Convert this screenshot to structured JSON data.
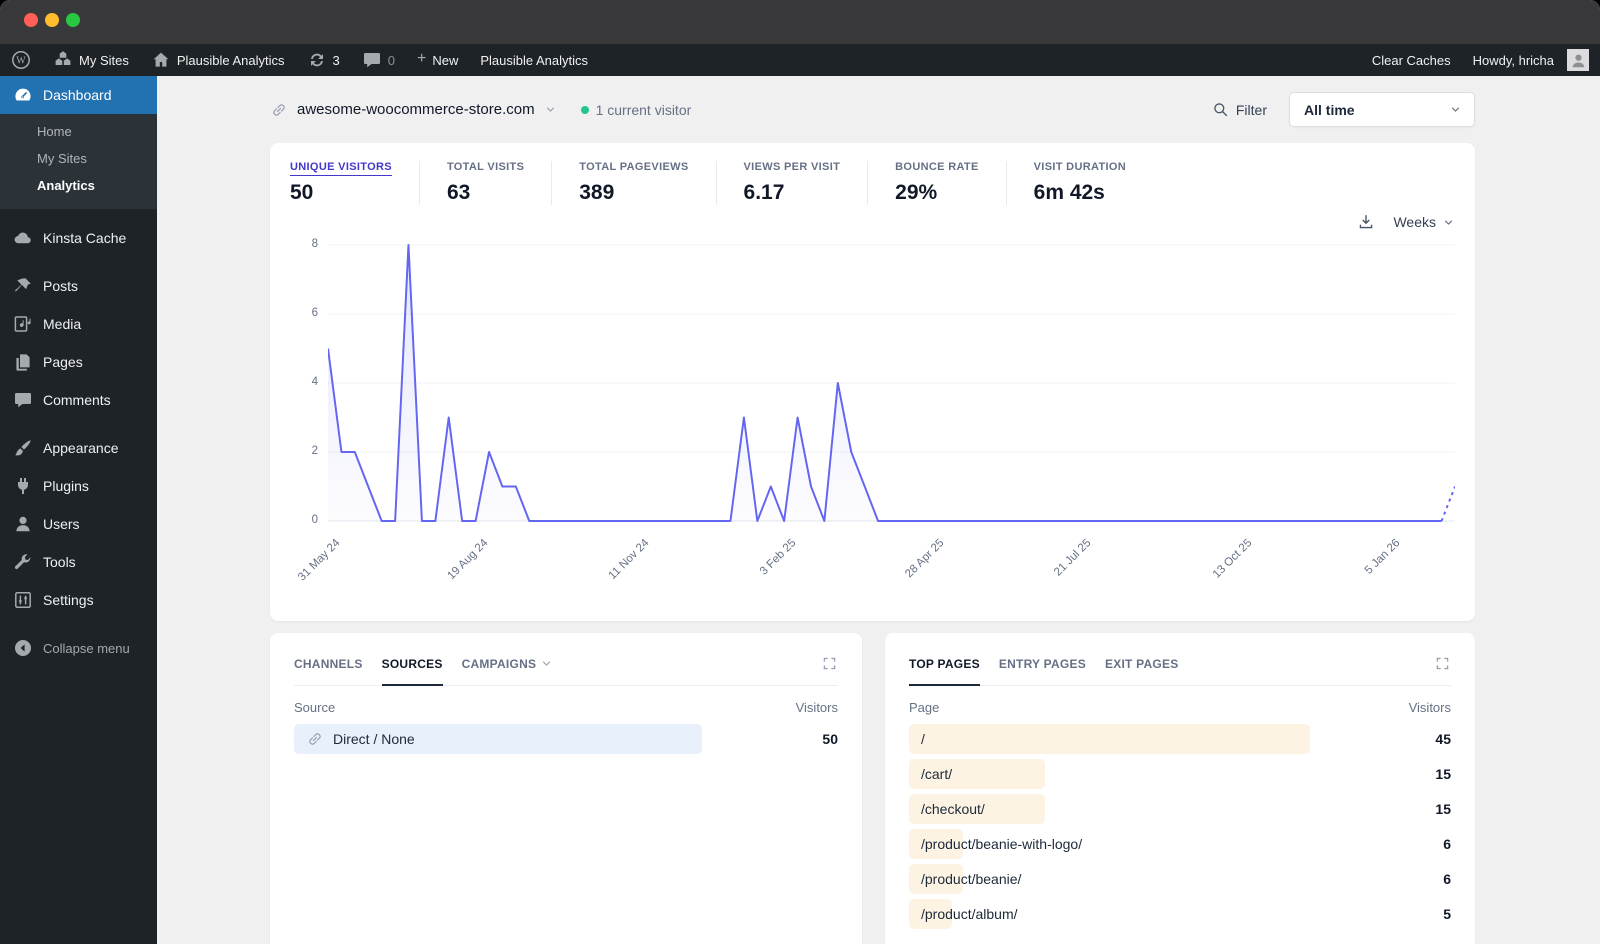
{
  "admin_bar": {
    "items_left": [
      {
        "icon": "wordpress",
        "label": "",
        "name": "wp-logo"
      },
      {
        "icon": "my-sites",
        "label": "My Sites",
        "name": "my-sites"
      },
      {
        "icon": "home",
        "label": "Plausible Analytics",
        "name": "site-name"
      },
      {
        "icon": "updates",
        "label": "3",
        "name": "updates"
      },
      {
        "icon": "comments",
        "label": "0",
        "muted_count": true,
        "name": "comments"
      },
      {
        "icon": "plus",
        "label": "New",
        "name": "new"
      },
      {
        "icon": "",
        "label": "Plausible Analytics",
        "name": "plausible-menu"
      }
    ],
    "items_right": [
      {
        "icon": "",
        "label": "Clear Caches",
        "name": "clear-caches"
      },
      {
        "icon": "",
        "label": "Howdy, hricha",
        "avatar": true,
        "name": "account"
      }
    ]
  },
  "sidebar": {
    "items": [
      {
        "type": "item",
        "label": "Dashboard",
        "icon": "dashboard",
        "active": true
      },
      {
        "type": "sub",
        "label": "Home"
      },
      {
        "type": "sub",
        "label": "My Sites"
      },
      {
        "type": "sub",
        "label": "Analytics",
        "current": true
      },
      {
        "type": "gap"
      },
      {
        "type": "item",
        "label": "Kinsta Cache",
        "icon": "cloud"
      },
      {
        "type": "gap"
      },
      {
        "type": "item",
        "label": "Posts",
        "icon": "pin"
      },
      {
        "type": "item",
        "label": "Media",
        "icon": "media"
      },
      {
        "type": "item",
        "label": "Pages",
        "icon": "pages"
      },
      {
        "type": "item",
        "label": "Comments",
        "icon": "comment"
      },
      {
        "type": "gap"
      },
      {
        "type": "item",
        "label": "Appearance",
        "icon": "brush"
      },
      {
        "type": "item",
        "label": "Plugins",
        "icon": "plugin"
      },
      {
        "type": "item",
        "label": "Users",
        "icon": "user"
      },
      {
        "type": "item",
        "label": "Tools",
        "icon": "wrench"
      },
      {
        "type": "item",
        "label": "Settings",
        "icon": "sliders"
      },
      {
        "type": "gap"
      },
      {
        "type": "item",
        "label": "Collapse menu",
        "icon": "collapse",
        "muted": true
      }
    ]
  },
  "toolbar": {
    "site": "awesome-woocommerce-store.com",
    "current_visitors": "1 current visitor",
    "filter_label": "Filter",
    "date_range": "All time"
  },
  "stats": [
    {
      "label": "UNIQUE VISITORS",
      "value": "50",
      "active": true
    },
    {
      "label": "TOTAL VISITS",
      "value": "63"
    },
    {
      "label": "TOTAL PAGEVIEWS",
      "value": "389"
    },
    {
      "label": "VIEWS PER VISIT",
      "value": "6.17"
    },
    {
      "label": "BOUNCE RATE",
      "value": "29%"
    },
    {
      "label": "VISIT DURATION",
      "value": "6m 42s"
    }
  ],
  "chart_controls": {
    "interval": "Weeks"
  },
  "chart_data": {
    "type": "line",
    "title": "Unique visitors per week",
    "series": [
      {
        "name": "Unique Visitors",
        "values": [
          5,
          2,
          2,
          1,
          0,
          0,
          8,
          0,
          0,
          3,
          0,
          0,
          2,
          1,
          1,
          0,
          0,
          0,
          0,
          0,
          0,
          0,
          0,
          0,
          0,
          0,
          0,
          0,
          0,
          0,
          0,
          3,
          0,
          1,
          0,
          3,
          1,
          0,
          4,
          2,
          1,
          0,
          0,
          0,
          0,
          0,
          0,
          0,
          0,
          0,
          0,
          0,
          0,
          0,
          0,
          0,
          0,
          0,
          0,
          0,
          0,
          0,
          0,
          0,
          0,
          0,
          0,
          0,
          0,
          0,
          0,
          0,
          0,
          0,
          0,
          0,
          0,
          0,
          0,
          0,
          0,
          0,
          0,
          0,
          1
        ]
      }
    ],
    "x_tick_labels": [
      "31 May 24",
      "19 Aug 24",
      "11 Nov 24",
      "3 Feb 25",
      "28 Apr 25",
      "21 Jul 25",
      "13 Oct 25",
      "5 Jan 26"
    ],
    "x_tick_indices": [
      0,
      11,
      23,
      34,
      45,
      56,
      68,
      79
    ],
    "y_ticks": [
      0,
      2,
      4,
      6,
      8
    ],
    "ylim": [
      0,
      8
    ],
    "grid": true,
    "legend": "none",
    "line_color": "#6366f1",
    "dashed_tail_from_index": 83
  },
  "sources_card": {
    "tabs": [
      {
        "label": "CHANNELS"
      },
      {
        "label": "SOURCES",
        "active": true
      },
      {
        "label": "CAMPAIGNS",
        "has_chevron": true
      }
    ],
    "columns": {
      "left": "Source",
      "right": "Visitors"
    },
    "bar_color": "#e8f0fb",
    "rows": [
      {
        "label": "Direct / None",
        "value": "50",
        "bar_pct": 75,
        "icon": "link"
      }
    ]
  },
  "pages_card": {
    "tabs": [
      {
        "label": "TOP PAGES",
        "active": true
      },
      {
        "label": "ENTRY PAGES"
      },
      {
        "label": "EXIT PAGES"
      }
    ],
    "columns": {
      "left": "Page",
      "right": "Visitors"
    },
    "bar_color": "#fdf3e2",
    "rows": [
      {
        "label": "/",
        "value": "45",
        "bar_pct": 74
      },
      {
        "label": "/cart/",
        "value": "15",
        "bar_pct": 25
      },
      {
        "label": "/checkout/",
        "value": "15",
        "bar_pct": 25
      },
      {
        "label": "/product/beanie-with-logo/",
        "value": "6",
        "bar_pct": 10
      },
      {
        "label": "/product/beanie/",
        "value": "6",
        "bar_pct": 10
      },
      {
        "label": "/product/album/",
        "value": "5",
        "bar_pct": 8
      }
    ]
  },
  "colors": {
    "accent_blue": "#2271b1",
    "line_indigo": "#6366f1",
    "active_metric": "#4338ca",
    "visitor_green": "#1fc78a",
    "admin_dark": "#1d2327",
    "submenu_dark": "#2c3338",
    "page_bg": "#f0f0f1",
    "pages_bar": "#fdf3e2",
    "sources_bar": "#e8f0fb"
  }
}
